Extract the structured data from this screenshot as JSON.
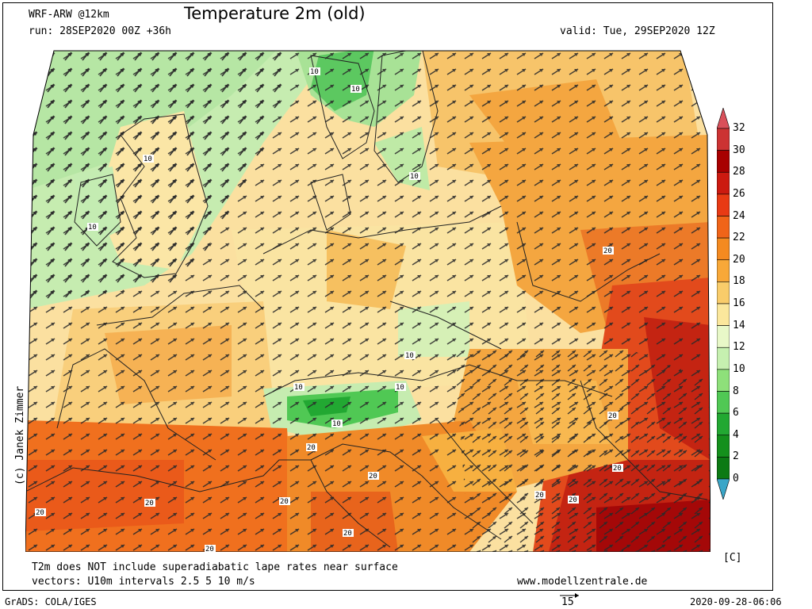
{
  "header": {
    "model": "WRF-ARW @12km",
    "run": "run: 28SEP2020 00Z +36h",
    "title": "Temperature 2m (old)",
    "valid": "valid: Tue, 29SEP2020 12Z"
  },
  "footer": {
    "note": "T2m does NOT include superadiabatic lape rates near surface",
    "vectors": "vectors: U10m intervals 2.5 5 10 m/s",
    "website": "www.modellzentrale.de",
    "grads": "GrADS: COLA/IGES",
    "timestamp": "2020-09-28-06:06",
    "vector_ref": "15"
  },
  "credit": "(c) Janek Zimmer",
  "colorbar": {
    "unit": "[C]",
    "levels": [
      "32",
      "30",
      "28",
      "26",
      "24",
      "22",
      "20",
      "18",
      "16",
      "14",
      "12",
      "10",
      "8",
      "6",
      "4",
      "2",
      "0"
    ],
    "colors": [
      "#e8a3a8",
      "#cc3333",
      "#a80000",
      "#cc1a10",
      "#e83a14",
      "#f06418",
      "#f48a20",
      "#f8a838",
      "#f9cc6a",
      "#fbe79c",
      "#e8f8c8",
      "#c6f0b0",
      "#8ee07a",
      "#50c854",
      "#22a832",
      "#14901c",
      "#0c7a14"
    ],
    "top_color": "#d9505a",
    "bottom_color": "#3aa6c8"
  },
  "map_labels": [
    {
      "id": "scotland",
      "text": "10"
    },
    {
      "id": "ireland",
      "text": "10"
    },
    {
      "id": "norway-s",
      "text": "10"
    },
    {
      "id": "norway-n",
      "text": "10"
    },
    {
      "id": "sweden",
      "text": "10"
    },
    {
      "id": "poland-e",
      "text": "20"
    },
    {
      "id": "czechia",
      "text": "10"
    },
    {
      "id": "alps-w",
      "text": "10"
    },
    {
      "id": "alps-e",
      "text": "10"
    },
    {
      "id": "alps-s",
      "text": "10"
    },
    {
      "id": "italy-n",
      "text": "20"
    },
    {
      "id": "croatia",
      "text": "20"
    },
    {
      "id": "hungary",
      "text": "20"
    },
    {
      "id": "romania",
      "text": "20"
    },
    {
      "id": "balkans",
      "text": "20"
    },
    {
      "id": "serbia",
      "text": "20"
    },
    {
      "id": "spain",
      "text": "20"
    },
    {
      "id": "med-w",
      "text": "20"
    },
    {
      "id": "italy-s",
      "text": "20"
    },
    {
      "id": "tyrrhenian",
      "text": "20"
    },
    {
      "id": "med-s",
      "text": "20"
    }
  ]
}
